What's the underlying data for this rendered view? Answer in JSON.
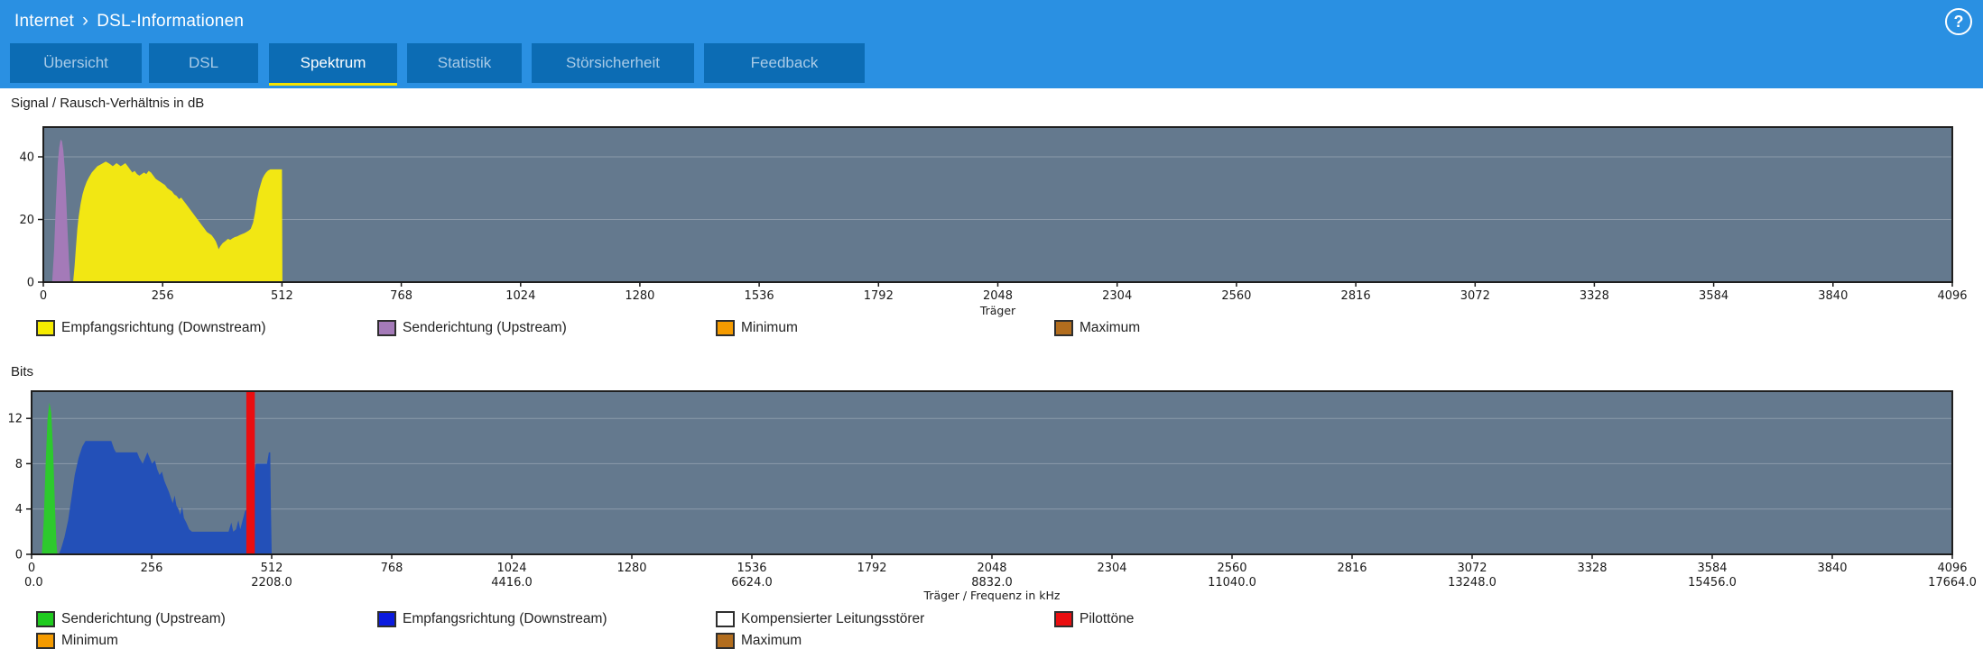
{
  "header": {
    "breadcrumb": {
      "section": "Internet",
      "separator": "›",
      "page": "DSL-Informationen"
    },
    "help_icon": "?"
  },
  "tabs": {
    "active_id": "spektrum",
    "items": [
      {
        "id": "uebersicht",
        "label": "Übersicht"
      },
      {
        "id": "dsl",
        "label": "DSL"
      },
      {
        "id": "spektrum",
        "label": "Spektrum"
      },
      {
        "id": "statistik",
        "label": "Statistik"
      },
      {
        "id": "stoersicherheit",
        "label": "Störsicherheit"
      },
      {
        "id": "feedback",
        "label": "Feedback"
      }
    ]
  },
  "colors": {
    "header_blue": "#2a90e2",
    "tab_blue": "#0c6cb4",
    "active_tab_underline": "#f6e400",
    "plot_background": "#64798e",
    "plot_border": "#1f1f1f",
    "gridline": "rgba(255,255,255,0.25)",
    "tick_text": "#1a1a1a"
  },
  "chart_data": [
    {
      "type": "area",
      "title": "Signal / Rausch-Verhältnis in dB",
      "xlabel": "Träger",
      "x_range": [
        0,
        4096
      ],
      "x_ticks": [
        0,
        256,
        512,
        768,
        1024,
        1280,
        1536,
        1792,
        2048,
        2304,
        2560,
        2816,
        3072,
        3328,
        3584,
        3840,
        4096
      ],
      "y_ticks": [
        0,
        20,
        40
      ],
      "y_max": 49.5,
      "grid": true,
      "series": [
        {
          "name": "Senderichtung (Upstream)",
          "color": "#a47ab8",
          "points": [
            [
              19,
              0
            ],
            [
              23,
              10
            ],
            [
              27,
              25
            ],
            [
              31,
              38
            ],
            [
              34,
              43
            ],
            [
              37,
              45.5
            ],
            [
              40,
              45
            ],
            [
              43,
              42
            ],
            [
              46,
              36
            ],
            [
              49,
              27
            ],
            [
              52,
              16
            ],
            [
              55,
              7
            ],
            [
              58,
              0
            ]
          ]
        },
        {
          "name": "Empfangsrichtung (Downstream)",
          "color": "#f2e713",
          "points": [
            [
              64,
              0
            ],
            [
              67,
              5
            ],
            [
              70,
              11
            ],
            [
              73,
              17
            ],
            [
              76,
              21
            ],
            [
              80,
              25
            ],
            [
              84,
              28
            ],
            [
              88,
              30
            ],
            [
              93,
              32
            ],
            [
              98,
              33.5
            ],
            [
              104,
              35
            ],
            [
              110,
              36
            ],
            [
              116,
              37
            ],
            [
              122,
              37.5
            ],
            [
              128,
              38
            ],
            [
              134,
              38.5
            ],
            [
              140,
              38
            ],
            [
              145,
              37.5
            ],
            [
              149,
              37
            ],
            [
              153,
              37.5
            ],
            [
              157,
              38
            ],
            [
              162,
              37.5
            ],
            [
              166,
              37
            ],
            [
              171,
              37.5
            ],
            [
              176,
              38
            ],
            [
              181,
              37
            ],
            [
              186,
              36
            ],
            [
              191,
              35
            ],
            [
              196,
              35.5
            ],
            [
              201,
              34.5
            ],
            [
              206,
              34
            ],
            [
              211,
              34.5
            ],
            [
              216,
              35
            ],
            [
              221,
              34.5
            ],
            [
              226,
              35.5
            ],
            [
              231,
              35
            ],
            [
              236,
              34
            ],
            [
              241,
              33
            ],
            [
              246,
              32.5
            ],
            [
              251,
              32
            ],
            [
              256,
              31.5
            ],
            [
              261,
              31
            ],
            [
              266,
              30
            ],
            [
              271,
              29.5
            ],
            [
              276,
              29
            ],
            [
              281,
              28
            ],
            [
              286,
              27.5
            ],
            [
              291,
              26.5
            ],
            [
              296,
              27
            ],
            [
              301,
              26
            ],
            [
              306,
              25
            ],
            [
              311,
              24
            ],
            [
              316,
              23
            ],
            [
              321,
              22
            ],
            [
              326,
              21
            ],
            [
              331,
              20
            ],
            [
              336,
              19
            ],
            [
              341,
              18
            ],
            [
              346,
              17
            ],
            [
              351,
              16
            ],
            [
              356,
              15.5
            ],
            [
              361,
              15
            ],
            [
              366,
              14
            ],
            [
              370,
              13
            ],
            [
              374,
              11.5
            ],
            [
              376,
              10.5
            ],
            [
              380,
              11.5
            ],
            [
              385,
              12.5
            ],
            [
              390,
              13
            ],
            [
              396,
              13.8
            ],
            [
              401,
              13.5
            ],
            [
              406,
              14
            ],
            [
              411,
              14.4
            ],
            [
              416,
              14.6
            ],
            [
              421,
              15
            ],
            [
              426,
              15.3
            ],
            [
              431,
              15.6
            ],
            [
              436,
              16
            ],
            [
              441,
              16.5
            ],
            [
              445,
              17
            ],
            [
              450,
              19
            ],
            [
              454,
              22
            ],
            [
              458,
              26
            ],
            [
              462,
              29
            ],
            [
              466,
              31
            ],
            [
              470,
              33
            ],
            [
              474,
              34.2
            ],
            [
              478,
              35
            ],
            [
              482,
              35.6
            ],
            [
              487,
              36
            ],
            [
              495,
              36
            ],
            [
              505,
              36
            ],
            [
              512,
              36
            ],
            [
              513,
              0
            ]
          ]
        }
      ],
      "legend": [
        {
          "label": "Empfangsrichtung (Downstream)",
          "color": "#f6ec00",
          "col": 0,
          "row": 0
        },
        {
          "label": "Senderichtung (Upstream)",
          "color": "#a47ab8",
          "col": 1,
          "row": 0
        },
        {
          "label": "Minimum",
          "color": "#f59b00",
          "col": 2,
          "row": 0
        },
        {
          "label": "Maximum",
          "color": "#b26d1e",
          "col": 3,
          "row": 0
        }
      ]
    },
    {
      "type": "area",
      "title": "Bits",
      "xlabel": "Träger / Frequenz in kHz",
      "x_range": [
        0,
        4096
      ],
      "x_ticks": [
        0,
        256,
        512,
        768,
        1024,
        1280,
        1536,
        1792,
        2048,
        2304,
        2560,
        2816,
        3072,
        3328,
        3584,
        3840,
        4096
      ],
      "x_ticks_khz": [
        {
          "at": 0,
          "label": "0.0"
        },
        {
          "at": 512,
          "label": "2208.0"
        },
        {
          "at": 1024,
          "label": "4416.0"
        },
        {
          "at": 1536,
          "label": "6624.0"
        },
        {
          "at": 2048,
          "label": "8832.0"
        },
        {
          "at": 2560,
          "label": "11040.0"
        },
        {
          "at": 3072,
          "label": "13248.0"
        },
        {
          "at": 3584,
          "label": "15456.0"
        },
        {
          "at": 4096,
          "label": "17664.0"
        }
      ],
      "y_ticks": [
        0,
        4,
        8,
        12
      ],
      "y_max": 14.4,
      "grid": true,
      "series": [
        {
          "name": "Senderichtung (Upstream)",
          "color": "#2dc92d",
          "points": [
            [
              22,
              0
            ],
            [
              26,
              3
            ],
            [
              30,
              8
            ],
            [
              34,
              12
            ],
            [
              38,
              13.4
            ],
            [
              42,
              12.5
            ],
            [
              46,
              9
            ],
            [
              50,
              4
            ],
            [
              53,
              1
            ],
            [
              55,
              0
            ]
          ]
        },
        {
          "name": "Empfangsrichtung (Downstream)",
          "color": "#2350b8",
          "points": [
            [
              58,
              0
            ],
            [
              63,
              0.5
            ],
            [
              70,
              1.5
            ],
            [
              78,
              3
            ],
            [
              85,
              5
            ],
            [
              92,
              7
            ],
            [
              100,
              8.5
            ],
            [
              108,
              9.5
            ],
            [
              115,
              10
            ],
            [
              170,
              10
            ],
            [
              176,
              9.3
            ],
            [
              180,
              9
            ],
            [
              225,
              9
            ],
            [
              230,
              8.5
            ],
            [
              237,
              8
            ],
            [
              242,
              8.5
            ],
            [
              247,
              9
            ],
            [
              252,
              8.5
            ],
            [
              257,
              8
            ],
            [
              263,
              8.3
            ],
            [
              268,
              7.5
            ],
            [
              273,
              7
            ],
            [
              278,
              7.3
            ],
            [
              283,
              6.5
            ],
            [
              288,
              6
            ],
            [
              293,
              5.5
            ],
            [
              297,
              5
            ],
            [
              301,
              4.5
            ],
            [
              305,
              5.2
            ],
            [
              309,
              4.3
            ],
            [
              313,
              4
            ],
            [
              317,
              3.5
            ],
            [
              321,
              4.2
            ],
            [
              325,
              3.2
            ],
            [
              330,
              2.8
            ],
            [
              336,
              2.2
            ],
            [
              342,
              2
            ],
            [
              420,
              2
            ],
            [
              426,
              2.8
            ],
            [
              430,
              2
            ],
            [
              436,
              2.2
            ],
            [
              441,
              3
            ],
            [
              445,
              2.2
            ],
            [
              450,
              3
            ],
            [
              455,
              3.8
            ],
            [
              459,
              4
            ],
            [
              463,
              4.5
            ],
            [
              466,
              5
            ],
            [
              469,
              6
            ],
            [
              472,
              6.2
            ],
            [
              475,
              7
            ],
            [
              478,
              8
            ],
            [
              502,
              8
            ],
            [
              506,
              9
            ],
            [
              509,
              9
            ],
            [
              510,
              5
            ],
            [
              512,
              0
            ]
          ]
        }
      ],
      "bars": [
        {
          "name": "Pilottöne",
          "color": "#ea0e10",
          "from": 458,
          "to": 476
        }
      ],
      "legend": [
        {
          "label": "Senderichtung (Upstream)",
          "color": "#1ecb1e",
          "col": 0,
          "row": 0
        },
        {
          "label": "Empfangsrichtung (Downstream)",
          "color": "#0b1bdf",
          "col": 1,
          "row": 0
        },
        {
          "label": "Kompensierter Leitungsstörer",
          "color": "#ffffff",
          "col": 2,
          "row": 0
        },
        {
          "label": "Pilottöne",
          "color": "#ea0e10",
          "col": 3,
          "row": 0
        },
        {
          "label": "Minimum",
          "color": "#f59b00",
          "col": 0,
          "row": 1
        },
        {
          "label": "Maximum",
          "color": "#b26d1e",
          "col": 2,
          "row": 1
        }
      ]
    }
  ]
}
